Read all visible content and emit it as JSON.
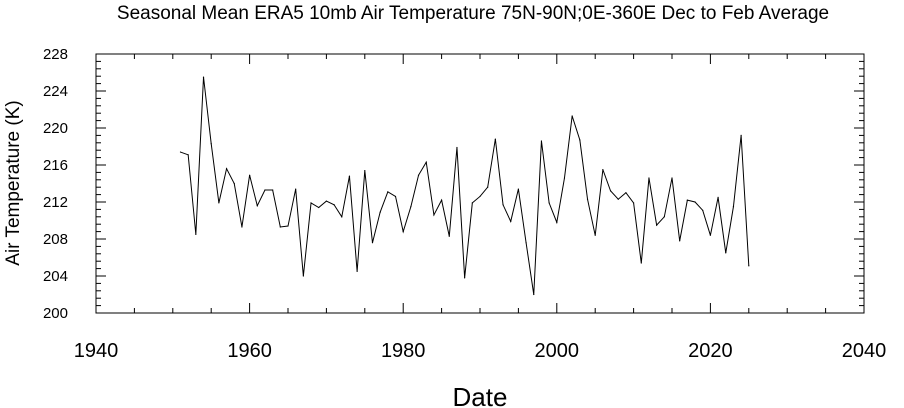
{
  "chart_data": {
    "type": "line",
    "title": "Seasonal Mean ERA5 10mb Air Temperature 75N-90N;0E-360E Dec to Feb Average",
    "xlabel": "Date",
    "ylabel": "Air Temperature (K)",
    "xlim": [
      1940,
      2040
    ],
    "ylim": [
      200,
      228
    ],
    "x_ticks": [
      1940,
      1960,
      1980,
      2000,
      2020,
      2040
    ],
    "y_ticks": [
      200,
      204,
      208,
      212,
      216,
      220,
      224,
      228
    ],
    "grid": false,
    "line_color": "#000000",
    "series": [
      {
        "x": [
          1951,
          1952,
          1953,
          1954,
          1955,
          1956,
          1957,
          1958,
          1959,
          1960,
          1961,
          1962,
          1963,
          1964,
          1965,
          1966,
          1967,
          1968,
          1969,
          1970,
          1971,
          1972,
          1973,
          1974,
          1975,
          1976,
          1977,
          1978,
          1979,
          1980,
          1981,
          1982,
          1983,
          1984,
          1985,
          1986,
          1987,
          1988,
          1989,
          1990,
          1991,
          1992,
          1993,
          1994,
          1995,
          1996,
          1997,
          1998,
          1999,
          2000,
          2001,
          2002,
          2003,
          2004,
          2005,
          2006,
          2007,
          2008,
          2009,
          2010,
          2011,
          2012,
          2013,
          2014,
          2015,
          2016,
          2017,
          2018,
          2019,
          2020,
          2021,
          2022,
          2023,
          2024,
          2025
        ],
        "y": [
          217.4,
          217.1,
          208.5,
          225.5,
          218.3,
          211.9,
          215.6,
          214.0,
          209.3,
          214.9,
          211.6,
          213.3,
          213.3,
          209.3,
          209.4,
          213.4,
          204.0,
          211.9,
          211.4,
          212.1,
          211.7,
          210.4,
          214.8,
          204.5,
          215.4,
          207.6,
          210.9,
          213.1,
          212.6,
          208.8,
          211.5,
          214.9,
          216.3,
          210.6,
          212.2,
          208.3,
          217.9,
          203.8,
          211.9,
          212.6,
          213.6,
          218.8,
          211.7,
          209.9,
          213.4,
          207.6,
          202.0,
          218.6,
          211.9,
          209.8,
          214.6,
          221.3,
          218.7,
          212.3,
          208.4,
          215.5,
          213.2,
          212.3,
          213.0,
          211.9,
          205.4,
          214.6,
          209.5,
          210.4,
          214.6,
          207.8,
          212.2,
          212.0,
          211.1,
          208.4,
          212.5,
          206.5,
          211.5,
          219.2,
          205.1
        ]
      }
    ]
  }
}
